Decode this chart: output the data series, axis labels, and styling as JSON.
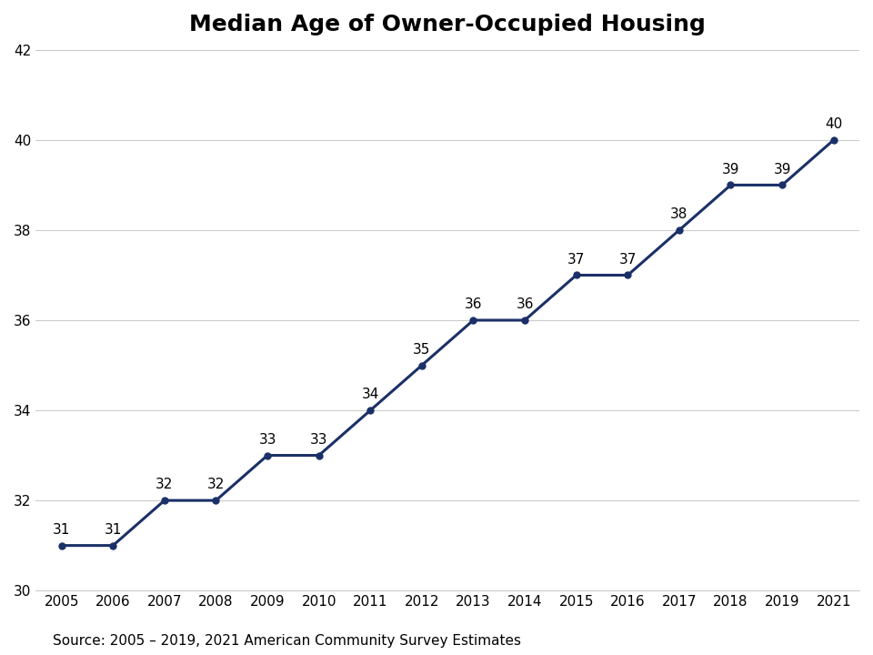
{
  "title": "Median Age of Owner-Occupied Housing",
  "source_text": "Source: 2005 – 2019, 2021 American Community Survey Estimates",
  "years": [
    2005,
    2006,
    2007,
    2008,
    2009,
    2010,
    2011,
    2012,
    2013,
    2014,
    2015,
    2016,
    2017,
    2018,
    2019,
    2021
  ],
  "values": [
    31,
    31,
    32,
    32,
    33,
    33,
    34,
    35,
    36,
    36,
    37,
    37,
    38,
    39,
    39,
    40
  ],
  "ylim": [
    30,
    42
  ],
  "yticks": [
    30,
    32,
    34,
    36,
    38,
    40,
    42
  ],
  "line_color": "#1b3068",
  "marker_color": "#1b3068",
  "background_color": "#ffffff",
  "title_fontsize": 18,
  "label_fontsize": 11,
  "source_fontsize": 11,
  "tick_fontsize": 11
}
